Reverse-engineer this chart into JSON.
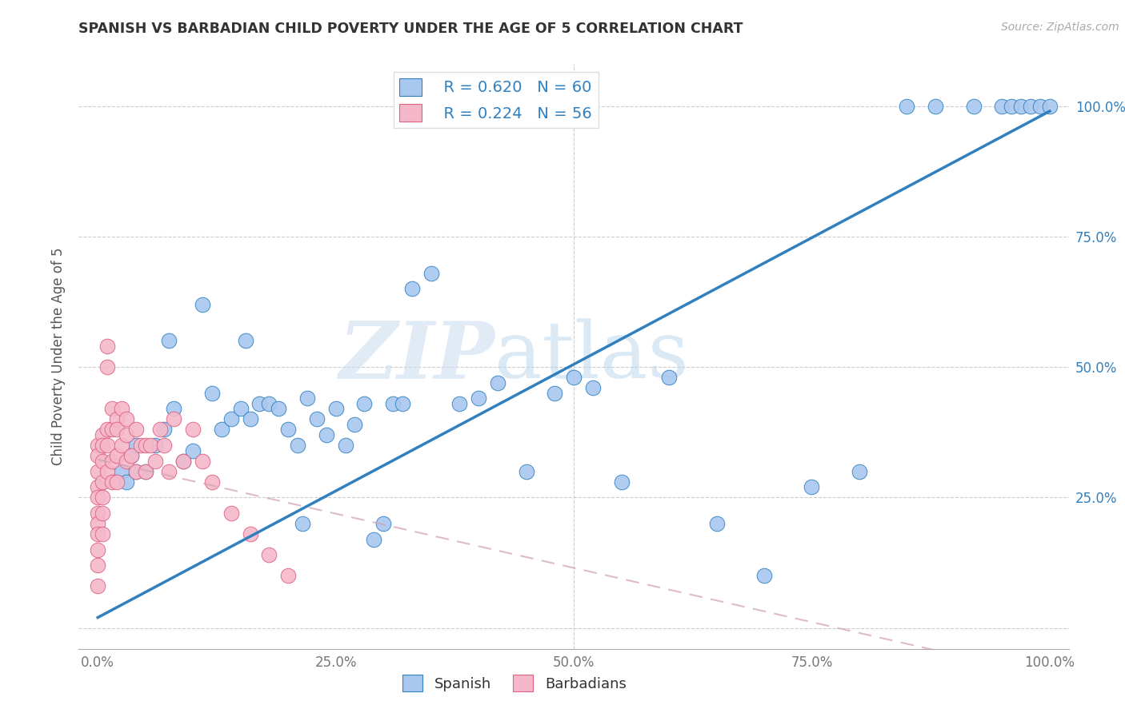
{
  "title": "SPANISH VS BARBADIAN CHILD POVERTY UNDER THE AGE OF 5 CORRELATION CHART",
  "source": "Source: ZipAtlas.com",
  "ylabel": "Child Poverty Under the Age of 5",
  "xlim": [
    -0.02,
    1.02
  ],
  "ylim": [
    -0.04,
    1.08
  ],
  "xticks": [
    0,
    0.25,
    0.5,
    0.75,
    1.0
  ],
  "yticks": [
    0.25,
    0.5,
    0.75,
    1.0
  ],
  "xticklabels": [
    "0.0%",
    "25.0%",
    "50.0%",
    "75.0%",
    "100.0%"
  ],
  "yticklabels_right": [
    "25.0%",
    "50.0%",
    "75.0%",
    "100.0%"
  ],
  "spanish_color": "#A8C8F0",
  "barbadian_color": "#F5B8CB",
  "regression_spanish_color": "#3080C0",
  "regression_barbadian_color": "#E06080",
  "legend_R_spanish": "R = 0.620",
  "legend_N_spanish": "N = 60",
  "legend_R_barbadian": "R = 0.224",
  "legend_N_barbadian": "N = 56",
  "legend_label_spanish": "Spanish",
  "legend_label_barbadian": "Barbadians",
  "watermark_zip": "ZIP",
  "watermark_atlas": "atlas",
  "spanish_x": [
    0.025,
    0.03,
    0.035,
    0.04,
    0.04,
    0.05,
    0.06,
    0.07,
    0.075,
    0.08,
    0.09,
    0.1,
    0.11,
    0.12,
    0.13,
    0.14,
    0.15,
    0.155,
    0.16,
    0.17,
    0.18,
    0.19,
    0.2,
    0.21,
    0.215,
    0.22,
    0.23,
    0.24,
    0.25,
    0.26,
    0.27,
    0.28,
    0.29,
    0.3,
    0.31,
    0.32,
    0.33,
    0.35,
    0.38,
    0.4,
    0.42,
    0.45,
    0.48,
    0.5,
    0.52,
    0.55,
    0.6,
    0.65,
    0.7,
    0.75,
    0.8,
    0.85,
    0.88,
    0.92,
    0.95,
    0.96,
    0.97,
    0.98,
    0.99,
    1.0
  ],
  "spanish_y": [
    0.3,
    0.28,
    0.33,
    0.3,
    0.35,
    0.3,
    0.35,
    0.38,
    0.55,
    0.42,
    0.32,
    0.34,
    0.62,
    0.45,
    0.38,
    0.4,
    0.42,
    0.55,
    0.4,
    0.43,
    0.43,
    0.42,
    0.38,
    0.35,
    0.2,
    0.44,
    0.4,
    0.37,
    0.42,
    0.35,
    0.39,
    0.43,
    0.17,
    0.2,
    0.43,
    0.43,
    0.65,
    0.68,
    0.43,
    0.44,
    0.47,
    0.3,
    0.45,
    0.48,
    0.46,
    0.28,
    0.48,
    0.2,
    0.1,
    0.27,
    0.3,
    1.0,
    1.0,
    1.0,
    1.0,
    1.0,
    1.0,
    1.0,
    1.0,
    1.0
  ],
  "barbadian_x": [
    0.0,
    0.0,
    0.0,
    0.0,
    0.0,
    0.0,
    0.0,
    0.0,
    0.0,
    0.0,
    0.0,
    0.005,
    0.005,
    0.005,
    0.005,
    0.005,
    0.005,
    0.005,
    0.01,
    0.01,
    0.01,
    0.01,
    0.01,
    0.015,
    0.015,
    0.015,
    0.015,
    0.02,
    0.02,
    0.02,
    0.02,
    0.025,
    0.025,
    0.03,
    0.03,
    0.03,
    0.035,
    0.04,
    0.04,
    0.045,
    0.05,
    0.05,
    0.055,
    0.06,
    0.065,
    0.07,
    0.075,
    0.08,
    0.09,
    0.1,
    0.11,
    0.12,
    0.14,
    0.16,
    0.18,
    0.2
  ],
  "barbadian_y": [
    0.35,
    0.33,
    0.3,
    0.27,
    0.25,
    0.22,
    0.2,
    0.18,
    0.15,
    0.12,
    0.08,
    0.37,
    0.35,
    0.32,
    0.28,
    0.25,
    0.22,
    0.18,
    0.54,
    0.5,
    0.38,
    0.35,
    0.3,
    0.42,
    0.38,
    0.32,
    0.28,
    0.4,
    0.38,
    0.33,
    0.28,
    0.42,
    0.35,
    0.4,
    0.37,
    0.32,
    0.33,
    0.38,
    0.3,
    0.35,
    0.35,
    0.3,
    0.35,
    0.32,
    0.38,
    0.35,
    0.3,
    0.4,
    0.32,
    0.38,
    0.32,
    0.28,
    0.22,
    0.18,
    0.14,
    0.1
  ]
}
